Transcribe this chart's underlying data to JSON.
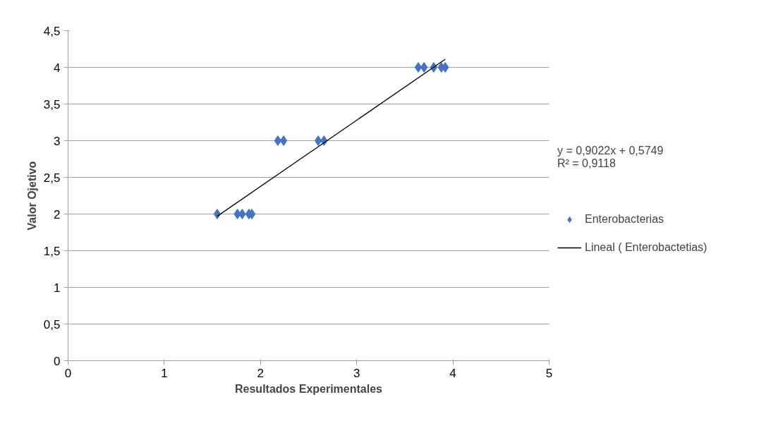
{
  "chart_data": {
    "type": "scatter",
    "xlabel": "Resultados Experimentales",
    "ylabel": "Valor Ojetivo",
    "xlim": [
      0,
      5
    ],
    "ylim": [
      0,
      4.5
    ],
    "xticks": [
      0,
      1,
      2,
      3,
      4,
      5
    ],
    "yticks": [
      0,
      {
        "value": 0.5,
        "label": "0,5"
      },
      1,
      {
        "value": 1.5,
        "label": "1,5"
      },
      2,
      {
        "value": 2.5,
        "label": "2,5"
      },
      3,
      {
        "value": 3.5,
        "label": "3,5"
      },
      4,
      {
        "value": 4.5,
        "label": "4,5"
      }
    ],
    "grid": "y",
    "legend": "right",
    "marker": "diamond",
    "annotations": [
      "y = 0,9022x + 0,5749\nR² = 0,9118"
    ],
    "series": [
      {
        "name": "Enterobacterias",
        "color": "#4472c4",
        "x": [
          1.55,
          1.76,
          1.81,
          1.88,
          1.91,
          2.18,
          2.24,
          2.6,
          2.66,
          3.64,
          3.7,
          3.8,
          3.88,
          3.92
        ],
        "values": [
          2,
          2,
          2,
          2,
          2,
          3,
          3,
          3,
          3,
          4,
          4,
          4,
          4,
          4
        ]
      },
      {
        "name": "Lineal ( Enterobactetias)",
        "type": "line",
        "color": "#000000",
        "marker": "none",
        "x": [
          1.55,
          3.92
        ],
        "values": [
          1.97,
          4.11
        ]
      }
    ]
  }
}
